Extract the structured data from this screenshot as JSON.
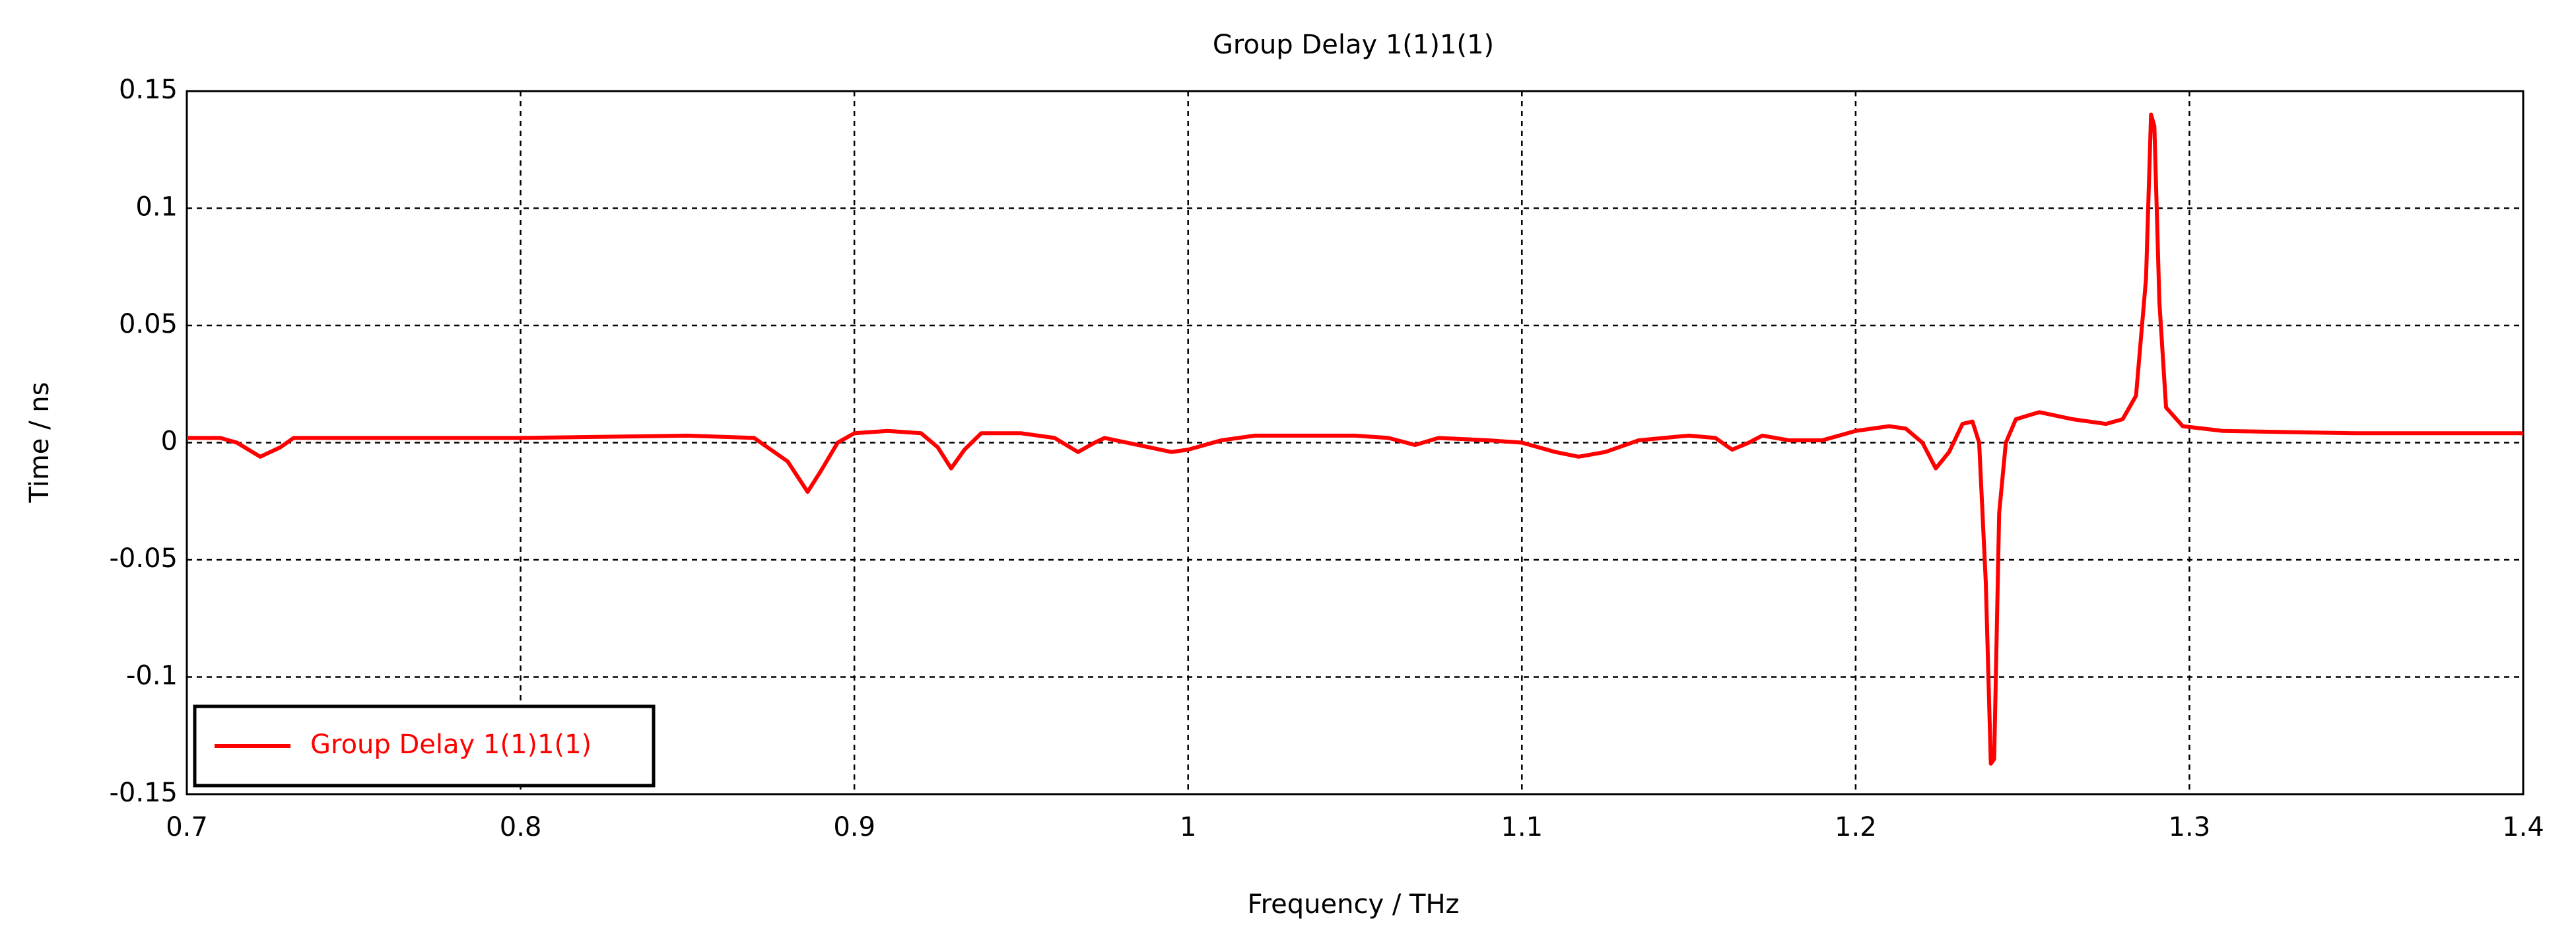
{
  "chart_data": {
    "type": "line",
    "title": "Group Delay 1(1)1(1)",
    "xlabel": "Frequency / THz",
    "ylabel": "Time / ns",
    "x": [
      0.7,
      0.71,
      0.715,
      0.722,
      0.728,
      0.732,
      0.75,
      0.8,
      0.85,
      0.87,
      0.88,
      0.886,
      0.89,
      0.895,
      0.9,
      0.91,
      0.92,
      0.925,
      0.929,
      0.933,
      0.938,
      0.95,
      0.96,
      0.967,
      0.972,
      0.975,
      0.985,
      0.995,
      1.0,
      1.01,
      1.02,
      1.05,
      1.06,
      1.068,
      1.075,
      1.09,
      1.1,
      1.11,
      1.117,
      1.125,
      1.135,
      1.15,
      1.158,
      1.163,
      1.168,
      1.172,
      1.18,
      1.19,
      1.2,
      1.21,
      1.215,
      1.22,
      1.224,
      1.228,
      1.232,
      1.235,
      1.237,
      1.239,
      1.2405,
      1.2415,
      1.243,
      1.245,
      1.248,
      1.255,
      1.265,
      1.275,
      1.28,
      1.284,
      1.287,
      1.2885,
      1.2895,
      1.291,
      1.293,
      1.298,
      1.31,
      1.35,
      1.4
    ],
    "series": [
      {
        "name": "Group Delay 1(1)1(1)",
        "color": "#ff0000",
        "values": [
          0.002,
          0.002,
          0.0,
          -0.006,
          -0.002,
          0.002,
          0.002,
          0.002,
          0.003,
          0.002,
          -0.008,
          -0.021,
          -0.012,
          0.0,
          0.004,
          0.005,
          0.004,
          -0.002,
          -0.011,
          -0.003,
          0.004,
          0.004,
          0.002,
          -0.004,
          0.0,
          0.002,
          -0.001,
          -0.004,
          -0.003,
          0.001,
          0.003,
          0.003,
          0.002,
          -0.001,
          0.002,
          0.001,
          0.0,
          -0.004,
          -0.006,
          -0.004,
          0.001,
          0.003,
          0.002,
          -0.003,
          0.0,
          0.003,
          0.001,
          0.001,
          0.005,
          0.007,
          0.006,
          0.0,
          -0.011,
          -0.004,
          0.008,
          0.009,
          0.0,
          -0.06,
          -0.137,
          -0.135,
          -0.03,
          0.0,
          0.01,
          0.013,
          0.01,
          0.008,
          0.01,
          0.02,
          0.07,
          0.14,
          0.135,
          0.06,
          0.015,
          0.007,
          0.005,
          0.004,
          0.004
        ]
      }
    ],
    "xlim": [
      0.7,
      1.4
    ],
    "xticks": [
      0.7,
      0.8,
      0.9,
      1,
      1.1,
      1.2,
      1.3,
      1.4
    ],
    "ylim": [
      -0.15,
      0.15
    ],
    "yticks": [
      -0.15,
      -0.1,
      -0.05,
      0,
      0.05,
      0.1,
      0.15
    ],
    "grid": true,
    "legend": "lower left"
  }
}
